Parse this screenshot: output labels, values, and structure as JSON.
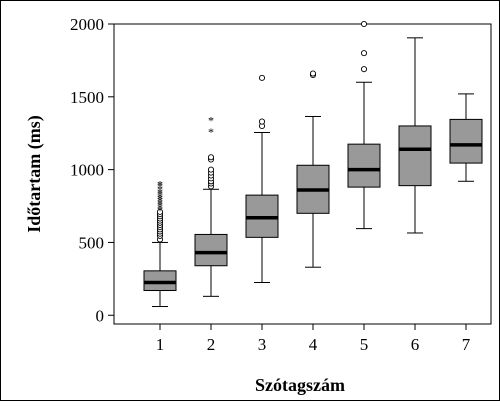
{
  "chart_data": {
    "type": "boxplot",
    "title": "",
    "xlabel": "Szótagszám",
    "ylabel": "Időtartam (ms)",
    "ylim": [
      -60,
      2000
    ],
    "yticks": [
      0,
      500,
      1000,
      1500,
      2000
    ],
    "grid": false,
    "categories": [
      "1",
      "2",
      "3",
      "4",
      "5",
      "6",
      "7"
    ],
    "boxes": [
      {
        "category": "1",
        "whisker_low": 60,
        "q1": 170,
        "median": 225,
        "q3": 305,
        "whisker_high": 500,
        "outliers_circle": [
          520,
          545,
          560,
          575,
          590,
          605,
          620,
          635,
          650,
          665,
          680,
          695,
          710
        ],
        "outliers_star": [
          725,
          745,
          760,
          775,
          790,
          805,
          820,
          835,
          850,
          870,
          890,
          905
        ]
      },
      {
        "category": "2",
        "whisker_low": 130,
        "q1": 340,
        "median": 430,
        "q3": 555,
        "whisker_high": 865,
        "outliers_circle": [
          885,
          905,
          920,
          940,
          960,
          980,
          1000,
          1070,
          1085
        ],
        "outliers_star": [
          1265,
          1345
        ]
      },
      {
        "category": "3",
        "whisker_low": 225,
        "q1": 535,
        "median": 670,
        "q3": 825,
        "whisker_high": 1255,
        "outliers_circle": [
          1300,
          1330,
          1630
        ],
        "outliers_star": []
      },
      {
        "category": "4",
        "whisker_low": 330,
        "q1": 700,
        "median": 860,
        "q3": 1030,
        "whisker_high": 1365,
        "outliers_circle": [
          1650,
          1660
        ],
        "outliers_star": []
      },
      {
        "category": "5",
        "whisker_low": 595,
        "q1": 880,
        "median": 1000,
        "q3": 1175,
        "whisker_high": 1600,
        "outliers_circle": [
          1690,
          1800,
          2000
        ],
        "outliers_star": []
      },
      {
        "category": "6",
        "whisker_low": 565,
        "q1": 890,
        "median": 1140,
        "q3": 1300,
        "whisker_high": 1905,
        "outliers_circle": [],
        "outliers_star": []
      },
      {
        "category": "7",
        "whisker_low": 920,
        "q1": 1045,
        "median": 1170,
        "q3": 1345,
        "whisker_high": 1520,
        "outliers_circle": [],
        "outliers_star": []
      }
    ],
    "colors": {
      "box_fill": "#999999",
      "stroke": "#000000",
      "background": "#ffffff"
    }
  }
}
